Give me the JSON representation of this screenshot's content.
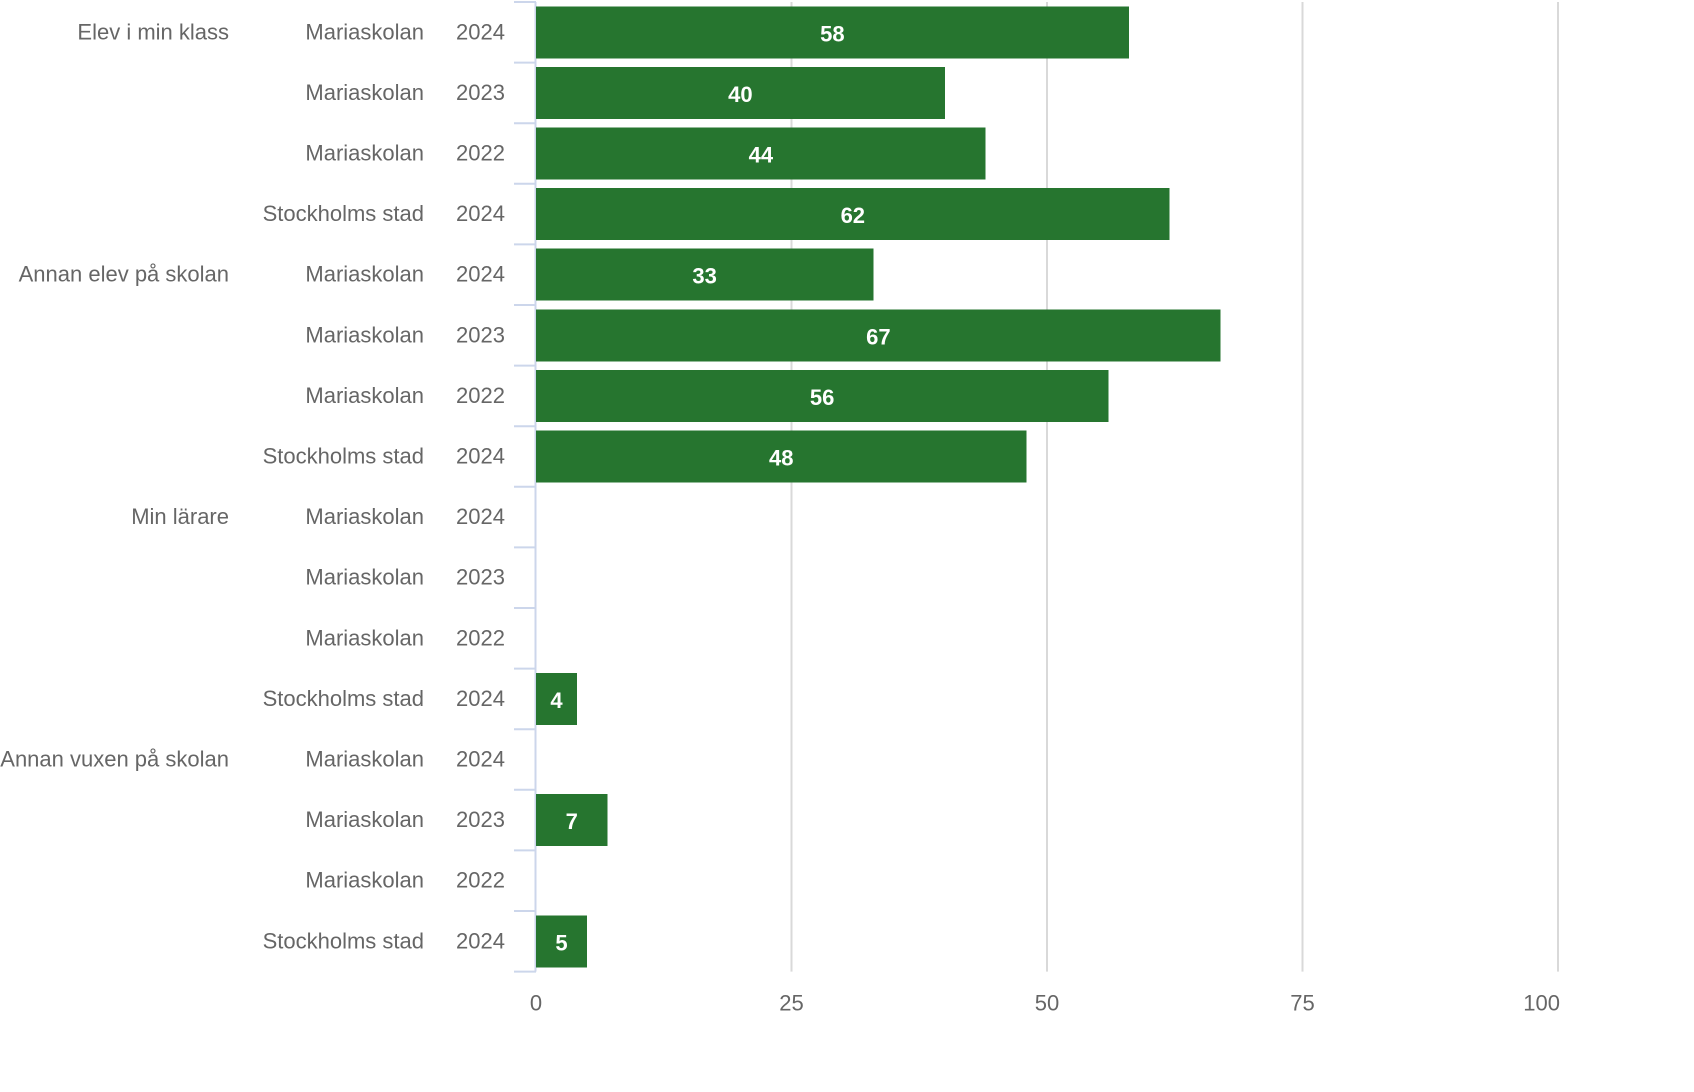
{
  "chart_data": {
    "type": "bar",
    "orientation": "horizontal",
    "title": "",
    "xlabel": "",
    "ylabel": "",
    "xlim": [
      0,
      100
    ],
    "x_ticks": [
      "0",
      "25",
      "50",
      "75",
      "100"
    ],
    "grid": true,
    "legend": "none",
    "bar_color": "#26752f",
    "groups": [
      {
        "label": "Elev i min klass",
        "rows": [
          {
            "school": "Mariaskolan",
            "year": "2024",
            "value": 58
          },
          {
            "school": "Mariaskolan",
            "year": "2023",
            "value": 40
          },
          {
            "school": "Mariaskolan",
            "year": "2022",
            "value": 44
          },
          {
            "school": "Stockholms stad",
            "year": "2024",
            "value": 62
          }
        ]
      },
      {
        "label": "Annan elev på skolan",
        "rows": [
          {
            "school": "Mariaskolan",
            "year": "2024",
            "value": 33
          },
          {
            "school": "Mariaskolan",
            "year": "2023",
            "value": 67
          },
          {
            "school": "Mariaskolan",
            "year": "2022",
            "value": 56
          },
          {
            "school": "Stockholms stad",
            "year": "2024",
            "value": 48
          }
        ]
      },
      {
        "label": "Min lärare",
        "rows": [
          {
            "school": "Mariaskolan",
            "year": "2024",
            "value": null
          },
          {
            "school": "Mariaskolan",
            "year": "2023",
            "value": null
          },
          {
            "school": "Mariaskolan",
            "year": "2022",
            "value": null
          },
          {
            "school": "Stockholms stad",
            "year": "2024",
            "value": 4
          }
        ]
      },
      {
        "label": "Annan vuxen på skolan",
        "rows": [
          {
            "school": "Mariaskolan",
            "year": "2024",
            "value": null
          },
          {
            "school": "Mariaskolan",
            "year": "2023",
            "value": 7
          },
          {
            "school": "Mariaskolan",
            "year": "2022",
            "value": null
          },
          {
            "school": "Stockholms stad",
            "year": "2024",
            "value": 5
          }
        ]
      }
    ]
  }
}
